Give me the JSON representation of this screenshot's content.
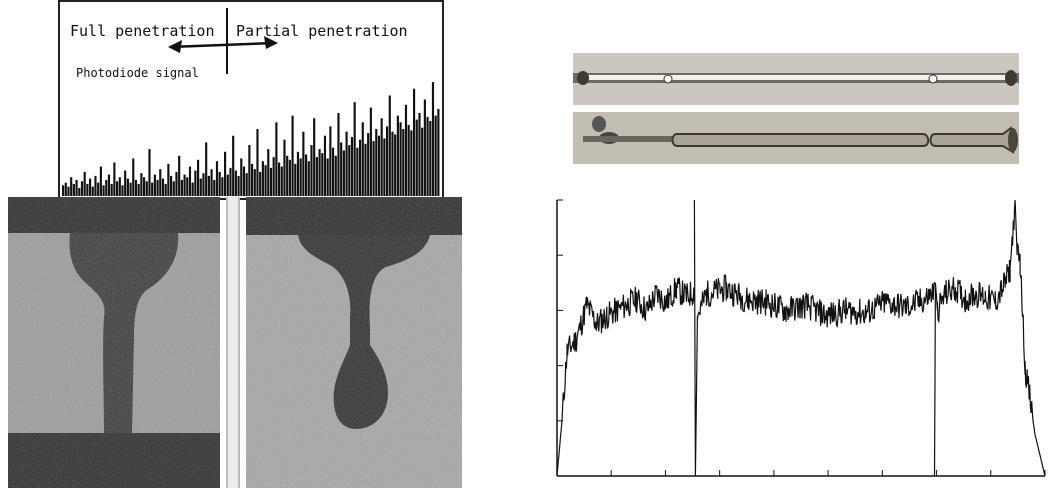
{
  "figure": {
    "signal_panel": {
      "full_label": "Full penetration",
      "partial_label": "Partial penetration",
      "signal_label": "Photodiode signal"
    },
    "micrographs": [
      {
        "name": "full-penetration-cross-section"
      },
      {
        "name": "partial-penetration-cross-section"
      }
    ],
    "weld_strips": [
      {
        "name": "weld-bead-top-view"
      },
      {
        "name": "weld-bead-bottom-view"
      }
    ]
  },
  "chart_data": [
    {
      "type": "bar",
      "description_source": "photodiode signal histogram (top-left panel)",
      "xlabel": "",
      "ylabel": "",
      "values": [
        8,
        10,
        7,
        14,
        9,
        12,
        6,
        11,
        18,
        9,
        13,
        7,
        15,
        10,
        22,
        8,
        12,
        16,
        9,
        25,
        11,
        14,
        8,
        19,
        13,
        10,
        28,
        12,
        9,
        17,
        14,
        11,
        35,
        10,
        16,
        12,
        20,
        13,
        9,
        24,
        15,
        11,
        18,
        30,
        12,
        16,
        14,
        22,
        10,
        19,
        27,
        13,
        17,
        40,
        15,
        20,
        12,
        26,
        18,
        14,
        33,
        16,
        21,
        45,
        19,
        15,
        28,
        22,
        17,
        38,
        24,
        20,
        50,
        18,
        26,
        23,
        35,
        21,
        29,
        55,
        25,
        22,
        42,
        30,
        27,
        60,
        24,
        33,
        28,
        48,
        31,
        26,
        38,
        58,
        29,
        35,
        32,
        45,
        28,
        52,
        36,
        30,
        62,
        40,
        34,
        48,
        38,
        44,
        70,
        36,
        42,
        55,
        39,
        47,
        66,
        41,
        50,
        45,
        58,
        43,
        52,
        75,
        48,
        46,
        60,
        55,
        50,
        68,
        53,
        49,
        80,
        57,
        62,
        51,
        72,
        59,
        56,
        85,
        60,
        65
      ],
      "ylim": [
        0,
        100
      ]
    },
    {
      "type": "line",
      "description_source": "photodiode signal trace (bottom-right panel)",
      "xlabel": "",
      "ylabel": "",
      "x_ticks": 9,
      "y_ticks": 5,
      "segments": [
        {
          "x": [
            0,
            5,
            10,
            20,
            30,
            40,
            50,
            60,
            70,
            80,
            90,
            100,
            110,
            120,
            130,
            138
          ],
          "y": [
            0,
            20,
            45,
            50,
            62,
            55,
            58,
            60,
            62,
            64,
            60,
            66,
            63,
            68,
            65,
            67
          ]
        },
        {
          "x": [
            138,
            139,
            141,
            150,
            170,
            190,
            210,
            230,
            250,
            270,
            290,
            310,
            330,
            350,
            370,
            379
          ],
          "y": [
            100,
            0,
            58,
            66,
            68,
            64,
            63,
            60,
            62,
            58,
            60,
            59,
            63,
            61,
            64,
            67
          ]
        },
        {
          "x": [
            379,
            380,
            382,
            390,
            400,
            410,
            420,
            430,
            440,
            450,
            455,
            460,
            462,
            465,
            470,
            480,
            490
          ],
          "y": [
            0,
            70,
            60,
            66,
            68,
            64,
            66,
            65,
            63,
            70,
            75,
            100,
            80,
            78,
            40,
            15,
            0
          ]
        }
      ],
      "ylim": [
        0,
        100
      ],
      "xlim": [
        0,
        490
      ]
    }
  ]
}
